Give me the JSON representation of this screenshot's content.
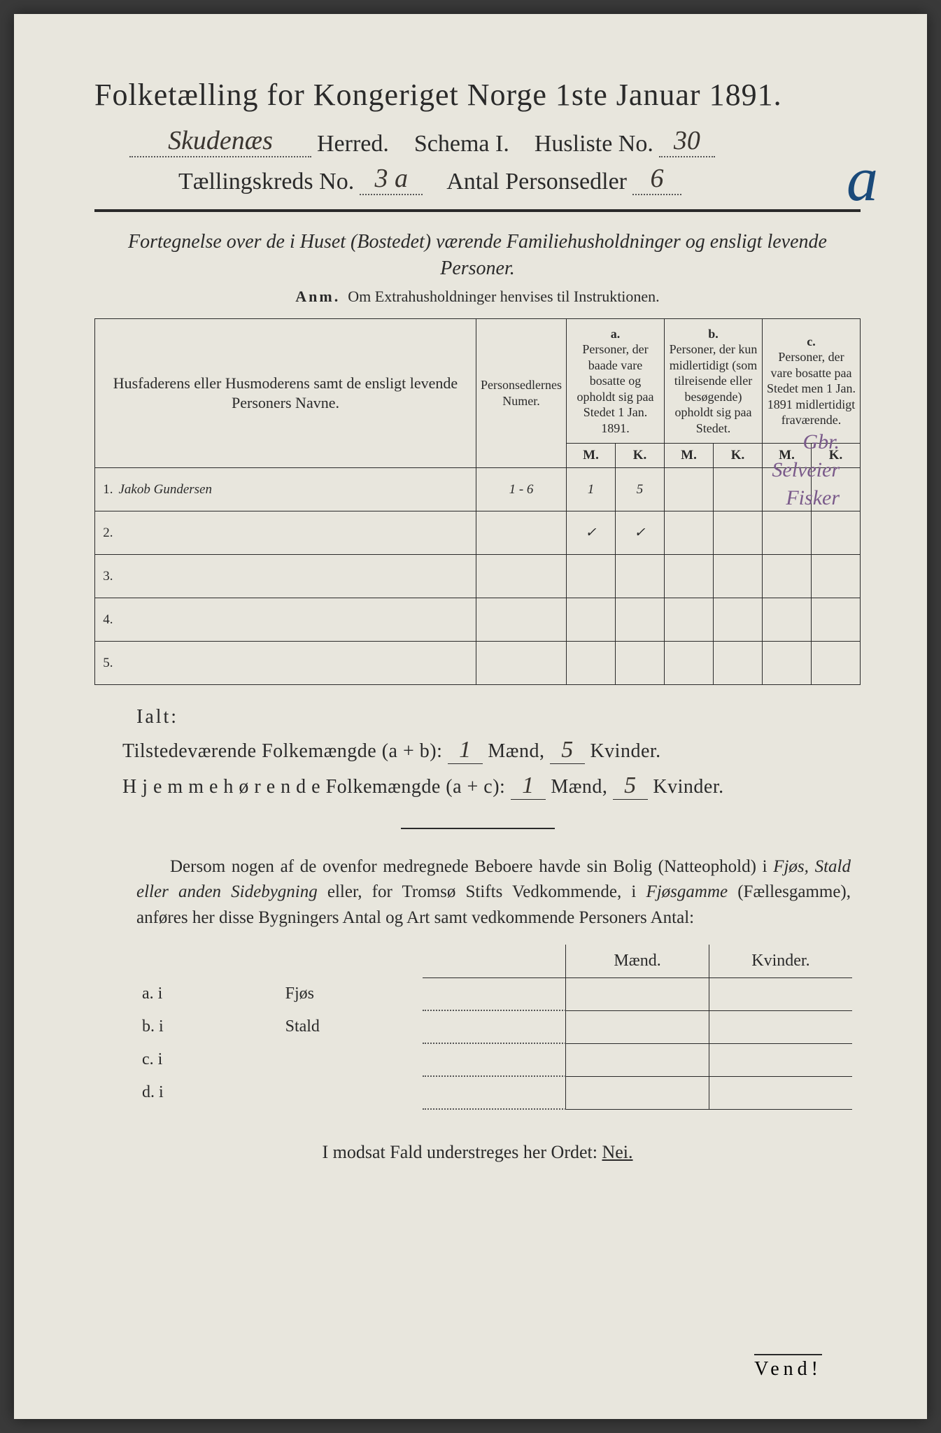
{
  "header": {
    "title": "Folketælling for Kongeriget Norge 1ste Januar 1891.",
    "herred_label": "Herred.",
    "herred_value": "Skudenæs",
    "schema": "Schema I.",
    "husliste_label": "Husliste No.",
    "husliste_value": "30",
    "kreds_label": "Tællingskreds No.",
    "kreds_value": "3 a",
    "antal_label": "Antal Personsedler",
    "antal_value": "6",
    "corner_letter": "a"
  },
  "subtitle": "Fortegnelse over de i Huset (Bostedet) værende Familiehusholdninger og ensligt levende Personer.",
  "anm_label": "Anm.",
  "anm_text": "Om Extrahusholdninger henvises til Instruktionen.",
  "table": {
    "col_name": "Husfaderens eller Husmoderens samt de ensligt levende Personers Navne.",
    "col_num": "Personsedlernes Numer.",
    "col_a_head": "a.",
    "col_a": "Personer, der baade vare bosatte og opholdt sig paa Stedet 1 Jan. 1891.",
    "col_b_head": "b.",
    "col_b": "Personer, der kun midlertidigt (som tilreisende eller besøgende) opholdt sig paa Stedet.",
    "col_c_head": "c.",
    "col_c": "Personer, der vare bosatte paa Stedet men 1 Jan. 1891 midlertidigt fraværende.",
    "mk_m": "M.",
    "mk_k": "K.",
    "rows": [
      {
        "n": "1.",
        "name": "Jakob Gundersen",
        "num": "1 - 6",
        "am": "1",
        "ak": "5",
        "bm": "",
        "bk": "",
        "cm": "",
        "ck": ""
      },
      {
        "n": "2.",
        "name": "",
        "num": "",
        "am": "✓",
        "ak": "✓",
        "bm": "",
        "bk": "",
        "cm": "",
        "ck": ""
      },
      {
        "n": "3.",
        "name": "",
        "num": "",
        "am": "",
        "ak": "",
        "bm": "",
        "bk": "",
        "cm": "",
        "ck": ""
      },
      {
        "n": "4.",
        "name": "",
        "num": "",
        "am": "",
        "ak": "",
        "bm": "",
        "bk": "",
        "cm": "",
        "ck": ""
      },
      {
        "n": "5.",
        "name": "",
        "num": "",
        "am": "",
        "ak": "",
        "bm": "",
        "bk": "",
        "cm": "",
        "ck": ""
      }
    ],
    "margin_notes": [
      "Gbr.",
      "Selveier",
      "Fisker"
    ]
  },
  "totals": {
    "ialt": "Ialt:",
    "line1_label": "Tilstedeværende Folkemængde (a + b):",
    "line2_label": "H j e m m e h ø r e n d e  Folkemængde (a + c):",
    "maend": "Mænd,",
    "kvinder": "Kvinder.",
    "v1m": "1",
    "v1k": "5",
    "v2m": "1",
    "v2k": "5"
  },
  "para": "Dersom nogen af de ovenfor medregnede Beboere havde sin Bolig (Natteophold) i Fjøs, Stald eller anden Sidebygning eller, for Tromsø Stifts Vedkommende, i Fjøsgamme (Fællesgamme), anføres her disse Bygningers Antal og Art samt vedkommende Personers Antal:",
  "buildings": {
    "head_m": "Mænd.",
    "head_k": "Kvinder.",
    "rows": [
      {
        "l": "a.  i",
        "t": "Fjøs"
      },
      {
        "l": "b.  i",
        "t": "Stald"
      },
      {
        "l": "c.  i",
        "t": ""
      },
      {
        "l": "d.  i",
        "t": ""
      }
    ]
  },
  "final": "I modsat Fald understreges her Ordet:",
  "nei": "Nei.",
  "vend": "Vend!",
  "colors": {
    "paper": "#e8e6dd",
    "ink": "#2a2a2a",
    "handwriting": "#3a3530",
    "blue_pencil": "#1a4a7a",
    "purple_pencil": "#7a5a8a"
  }
}
